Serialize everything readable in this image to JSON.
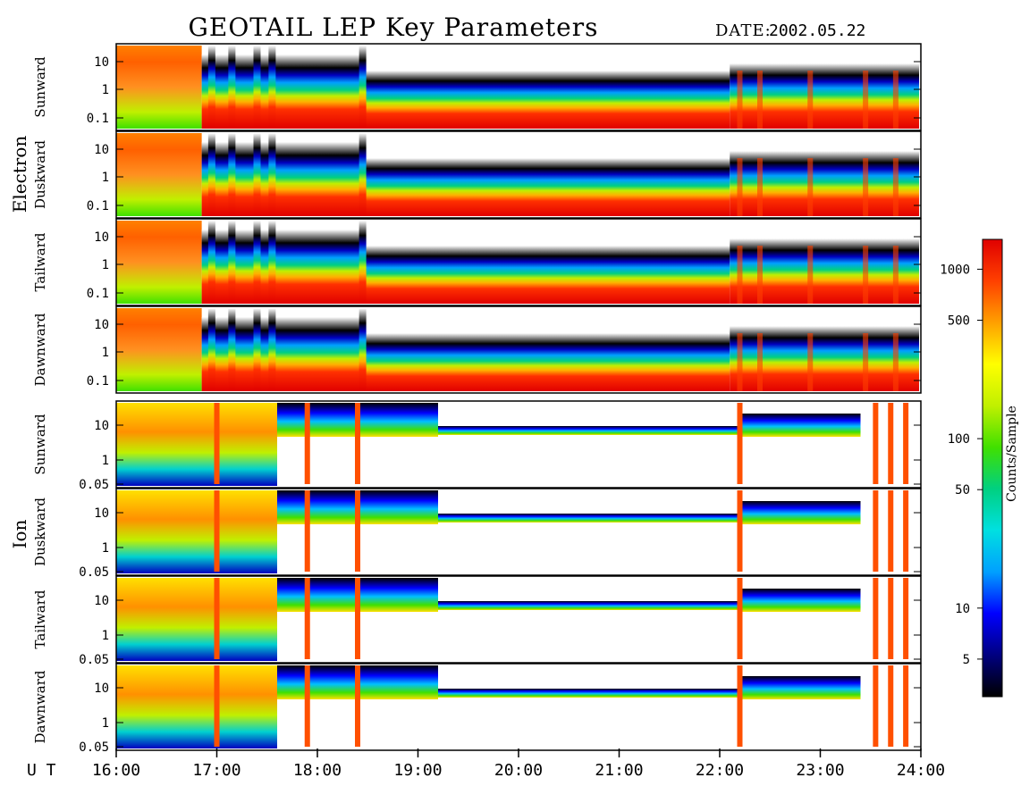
{
  "title": "GEOTAIL LEP Key Parameters",
  "date_label": "DATE:",
  "date_value": "2002.05.22",
  "chart_data": {
    "type": "heatmap",
    "x_axis": {
      "label": "U T",
      "ticks": [
        "16:00",
        "17:00",
        "18:00",
        "19:00",
        "20:00",
        "21:00",
        "22:00",
        "23:00",
        "24:00"
      ]
    },
    "groups": [
      {
        "name": "Electron",
        "panels": [
          {
            "label": "Sunward",
            "y_ticks": [
              "10",
              "1",
              "0.1"
            ]
          },
          {
            "label": "Duskward",
            "y_ticks": [
              "10",
              "1",
              "0.1"
            ]
          },
          {
            "label": "Tailward",
            "y_ticks": [
              "10",
              "1",
              "0.1"
            ]
          },
          {
            "label": "Dawnward",
            "y_ticks": [
              "10",
              "1",
              "0.1"
            ]
          }
        ]
      },
      {
        "name": "Ion",
        "panels": [
          {
            "label": "Sunward",
            "y_ticks": [
              "10",
              "1",
              "0.05"
            ]
          },
          {
            "label": "Duskward",
            "y_ticks": [
              "10",
              "1",
              "0.05"
            ]
          },
          {
            "label": "Tailward",
            "y_ticks": [
              "10",
              "1",
              "0.05"
            ]
          },
          {
            "label": "Dawnward",
            "y_ticks": [
              "10",
              "1",
              "0.05"
            ]
          }
        ]
      }
    ],
    "colorbar": {
      "label": "Counts/Sample",
      "scale": "log",
      "range": [
        3,
        1500
      ],
      "ticks": [
        {
          "label": "1000",
          "value": 1000
        },
        {
          "label": "500",
          "value": 500
        },
        {
          "label": "100",
          "value": 100
        },
        {
          "label": "50",
          "value": 50
        },
        {
          "label": "10",
          "value": 10
        },
        {
          "label": "5",
          "value": 5
        }
      ],
      "colors": [
        "#000000",
        "#000080",
        "#0000ff",
        "#00a0ff",
        "#00e0e0",
        "#00d080",
        "#40e000",
        "#c0f000",
        "#ffff00",
        "#ffa000",
        "#ff4000",
        "#e00000"
      ]
    }
  }
}
